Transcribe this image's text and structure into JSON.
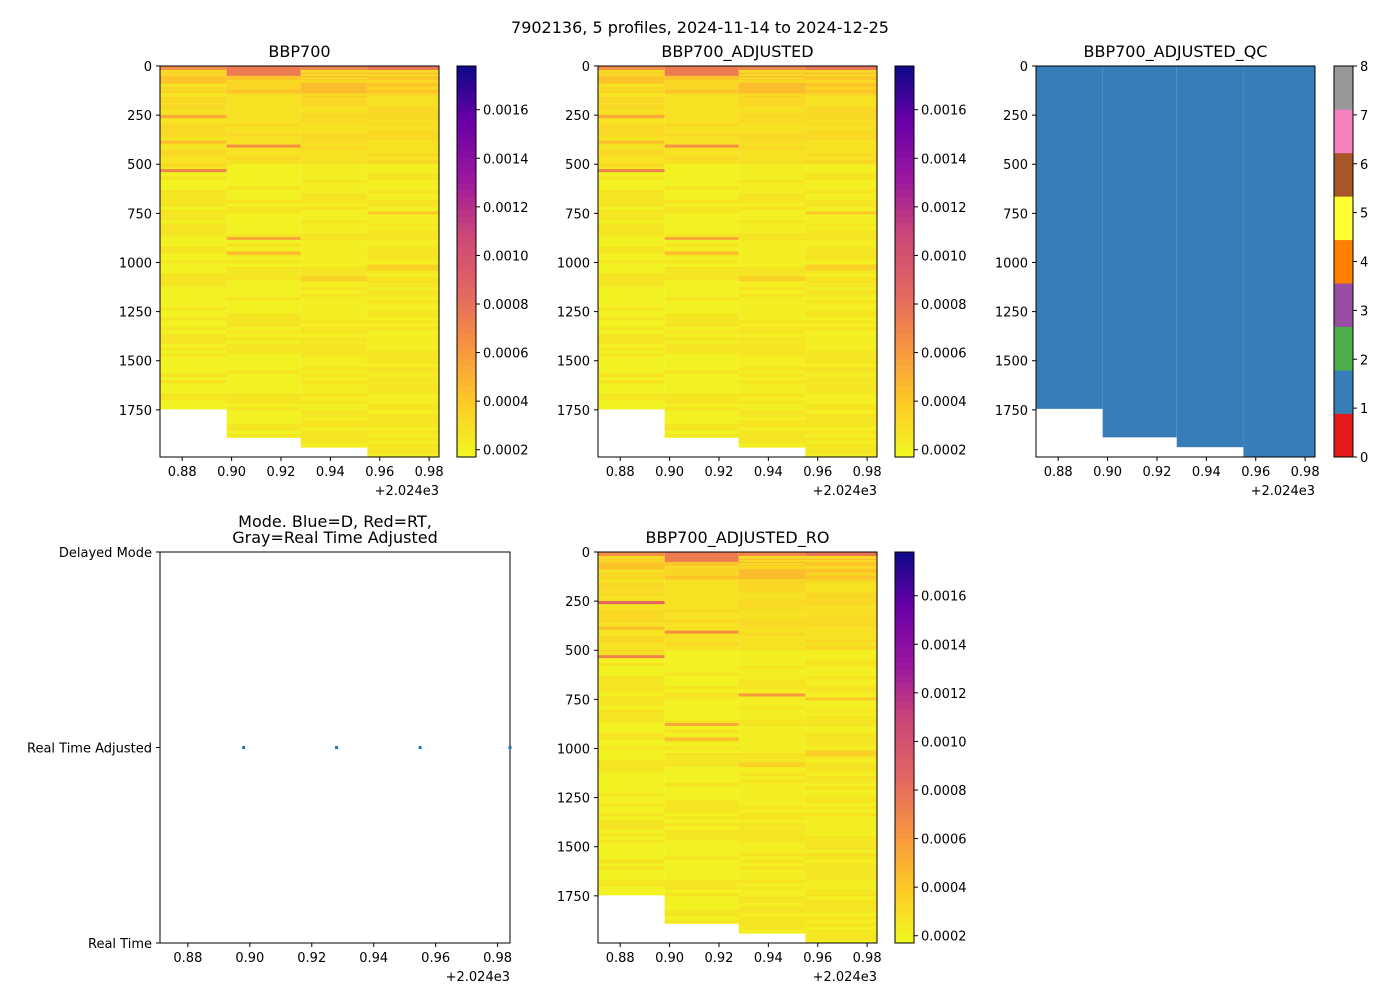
{
  "figure": {
    "suptitle": "7902136, 5 profiles, 2024-11-14 to 2024-12-25",
    "x_offset_label": "+2.024e3"
  },
  "chart_data": [
    {
      "type": "heatmap",
      "title": "BBP700",
      "xlim": [
        0.871,
        0.984
      ],
      "ylim": [
        1990,
        0
      ],
      "xticks": [
        "0.88",
        "0.90",
        "0.92",
        "0.94",
        "0.96",
        "0.98"
      ],
      "xtick_values": [
        0.88,
        0.9,
        0.92,
        0.94,
        0.96,
        0.98
      ],
      "yticks": [
        "0",
        "250",
        "500",
        "750",
        "1000",
        "1250",
        "1500",
        "1750"
      ],
      "ytick_values": [
        0,
        250,
        500,
        750,
        1000,
        1250,
        1500,
        1750
      ],
      "x_offset": "+2.024e3",
      "colorbar": {
        "range": [
          0.00017,
          0.00178
        ],
        "ticks": [
          "0.0002",
          "0.0004",
          "0.0006",
          "0.0008",
          "0.0010",
          "0.0012",
          "0.0014",
          "0.0016"
        ],
        "tick_values": [
          0.0002,
          0.0004,
          0.0006,
          0.0008,
          0.001,
          0.0012,
          0.0014,
          0.0016
        ],
        "colormap": "plasma_r"
      },
      "profiles": [
        {
          "x0": 0.871,
          "x1": 0.898,
          "max_depth": 1745,
          "layers": [
            {
              "top": 0,
              "bottom": 30,
              "value": 0.00066
            },
            {
              "top": 30,
              "bottom": 90,
              "value": 0.00042
            },
            {
              "top": 90,
              "bottom": 500,
              "value": 0.00027
            },
            {
              "top": 500,
              "bottom": 1745,
              "value": 0.00021
            }
          ],
          "lines": [
            {
              "depth": 250,
              "value": 0.00055
            },
            {
              "depth": 380,
              "value": 0.00045
            },
            {
              "depth": 525,
              "value": 0.0007
            },
            {
              "depth": 1600,
              "value": 0.00028
            }
          ]
        },
        {
          "x0": 0.898,
          "x1": 0.928,
          "max_depth": 1890,
          "layers": [
            {
              "top": 0,
              "bottom": 50,
              "value": 0.00075
            },
            {
              "top": 50,
              "bottom": 140,
              "value": 0.00042
            },
            {
              "top": 140,
              "bottom": 500,
              "value": 0.00028
            },
            {
              "top": 500,
              "bottom": 1890,
              "value": 0.00021
            }
          ],
          "lines": [
            {
              "depth": 400,
              "value": 0.00065
            },
            {
              "depth": 870,
              "value": 0.00055
            },
            {
              "depth": 945,
              "value": 0.00045
            }
          ]
        },
        {
          "x0": 0.928,
          "x1": 0.955,
          "max_depth": 1940,
          "layers": [
            {
              "top": 0,
              "bottom": 60,
              "value": 0.0007
            },
            {
              "top": 60,
              "bottom": 160,
              "value": 0.00045
            },
            {
              "top": 160,
              "bottom": 500,
              "value": 0.00028
            },
            {
              "top": 500,
              "bottom": 1940,
              "value": 0.00022
            }
          ],
          "lines": [
            {
              "depth": 1070,
              "value": 0.00036
            },
            {
              "depth": 1080,
              "value": 0.00036
            }
          ]
        },
        {
          "x0": 0.955,
          "x1": 0.984,
          "max_depth": 1990,
          "layers": [
            {
              "top": 0,
              "bottom": 40,
              "value": 0.00078
            },
            {
              "top": 40,
              "bottom": 150,
              "value": 0.00042
            },
            {
              "top": 150,
              "bottom": 500,
              "value": 0.00028
            },
            {
              "top": 500,
              "bottom": 1990,
              "value": 0.00022
            }
          ],
          "lines": [
            {
              "depth": 1010,
              "value": 0.00036
            },
            {
              "depth": 1025,
              "value": 0.00036
            },
            {
              "depth": 740,
              "value": 0.0004
            }
          ]
        }
      ]
    },
    {
      "type": "heatmap",
      "title": "BBP700_ADJUSTED",
      "xlim": [
        0.871,
        0.984
      ],
      "ylim": [
        1990,
        0
      ],
      "xticks": [
        "0.88",
        "0.90",
        "0.92",
        "0.94",
        "0.96",
        "0.98"
      ],
      "xtick_values": [
        0.88,
        0.9,
        0.92,
        0.94,
        0.96,
        0.98
      ],
      "yticks": [
        "0",
        "250",
        "500",
        "750",
        "1000",
        "1250",
        "1500",
        "1750"
      ],
      "ytick_values": [
        0,
        250,
        500,
        750,
        1000,
        1250,
        1500,
        1750
      ],
      "x_offset": "+2.024e3",
      "colorbar": {
        "range": [
          0.00017,
          0.00178
        ],
        "ticks": [
          "0.0002",
          "0.0004",
          "0.0006",
          "0.0008",
          "0.0010",
          "0.0012",
          "0.0014",
          "0.0016"
        ],
        "tick_values": [
          0.0002,
          0.0004,
          0.0006,
          0.0008,
          0.001,
          0.0012,
          0.0014,
          0.0016
        ],
        "colormap": "plasma_r"
      },
      "profiles": [
        {
          "x0": 0.871,
          "x1": 0.898,
          "max_depth": 1745,
          "layers": [
            {
              "top": 0,
              "bottom": 30,
              "value": 0.00066
            },
            {
              "top": 30,
              "bottom": 90,
              "value": 0.00042
            },
            {
              "top": 90,
              "bottom": 500,
              "value": 0.00027
            },
            {
              "top": 500,
              "bottom": 1745,
              "value": 0.00021
            }
          ],
          "lines": [
            {
              "depth": 250,
              "value": 0.00055
            },
            {
              "depth": 380,
              "value": 0.00045
            },
            {
              "depth": 525,
              "value": 0.0007
            },
            {
              "depth": 1600,
              "value": 0.00028
            }
          ]
        },
        {
          "x0": 0.898,
          "x1": 0.928,
          "max_depth": 1890,
          "layers": [
            {
              "top": 0,
              "bottom": 50,
              "value": 0.00075
            },
            {
              "top": 50,
              "bottom": 140,
              "value": 0.00042
            },
            {
              "top": 140,
              "bottom": 500,
              "value": 0.00028
            },
            {
              "top": 500,
              "bottom": 1890,
              "value": 0.00021
            }
          ],
          "lines": [
            {
              "depth": 400,
              "value": 0.00065
            },
            {
              "depth": 870,
              "value": 0.00055
            },
            {
              "depth": 945,
              "value": 0.00045
            }
          ]
        },
        {
          "x0": 0.928,
          "x1": 0.955,
          "max_depth": 1940,
          "layers": [
            {
              "top": 0,
              "bottom": 60,
              "value": 0.0007
            },
            {
              "top": 60,
              "bottom": 160,
              "value": 0.00045
            },
            {
              "top": 160,
              "bottom": 500,
              "value": 0.00028
            },
            {
              "top": 500,
              "bottom": 1940,
              "value": 0.00022
            }
          ],
          "lines": [
            {
              "depth": 1070,
              "value": 0.00036
            },
            {
              "depth": 1080,
              "value": 0.00036
            }
          ]
        },
        {
          "x0": 0.955,
          "x1": 0.984,
          "max_depth": 1990,
          "layers": [
            {
              "top": 0,
              "bottom": 40,
              "value": 0.00078
            },
            {
              "top": 40,
              "bottom": 150,
              "value": 0.00042
            },
            {
              "top": 150,
              "bottom": 500,
              "value": 0.00028
            },
            {
              "top": 500,
              "bottom": 1990,
              "value": 0.00022
            }
          ],
          "lines": [
            {
              "depth": 1010,
              "value": 0.00036
            },
            {
              "depth": 1025,
              "value": 0.00036
            },
            {
              "depth": 740,
              "value": 0.0004
            }
          ]
        }
      ]
    },
    {
      "type": "heatmap",
      "title": "BBP700_ADJUSTED_QC",
      "xlim": [
        0.871,
        0.984
      ],
      "ylim": [
        1990,
        0
      ],
      "xticks": [
        "0.88",
        "0.90",
        "0.92",
        "0.94",
        "0.96",
        "0.98"
      ],
      "xtick_values": [
        0.88,
        0.9,
        0.92,
        0.94,
        0.96,
        0.98
      ],
      "yticks": [
        "0",
        "250",
        "500",
        "750",
        "1000",
        "1250",
        "1500",
        "1750"
      ],
      "ytick_values": [
        0,
        250,
        500,
        750,
        1000,
        1250,
        1500,
        1750
      ],
      "x_offset": "+2.024e3",
      "qc_value": 1,
      "colorbar": {
        "range": [
          0,
          8
        ],
        "ticks": [
          "0",
          "1",
          "2",
          "3",
          "4",
          "5",
          "6",
          "7",
          "8"
        ],
        "tick_values": [
          0,
          1,
          2,
          3,
          4,
          5,
          6,
          7,
          8
        ],
        "colors": [
          "#e41a1c",
          "#377eb8",
          "#4daf4a",
          "#984ea3",
          "#ff7f00",
          "#ffff33",
          "#a65628",
          "#f781bf",
          "#999999"
        ]
      },
      "profiles": [
        {
          "x0": 0.871,
          "x1": 0.898,
          "max_depth": 1745
        },
        {
          "x0": 0.898,
          "x1": 0.928,
          "max_depth": 1890
        },
        {
          "x0": 0.928,
          "x1": 0.955,
          "max_depth": 1940
        },
        {
          "x0": 0.955,
          "x1": 0.984,
          "max_depth": 1990
        }
      ]
    },
    {
      "type": "scatter",
      "title_line1": "Mode. Blue=D, Red=RT,",
      "title_line2": "Gray=Real Time Adjusted",
      "xlim": [
        0.871,
        0.984
      ],
      "ylim": [
        0,
        2
      ],
      "xticks": [
        "0.88",
        "0.90",
        "0.92",
        "0.94",
        "0.96",
        "0.98"
      ],
      "xtick_values": [
        0.88,
        0.9,
        0.92,
        0.94,
        0.96,
        0.98
      ],
      "yticks": [
        "Real Time",
        "Real Time Adjusted",
        "Delayed Mode"
      ],
      "ytick_values": [
        0,
        1,
        2
      ],
      "x_offset": "+2.024e3",
      "points": [
        {
          "x": 0.898,
          "y": 1
        },
        {
          "x": 0.928,
          "y": 1
        },
        {
          "x": 0.955,
          "y": 1
        },
        {
          "x": 0.984,
          "y": 1
        }
      ]
    },
    {
      "type": "heatmap",
      "title": "BBP700_ADJUSTED_RO",
      "xlim": [
        0.871,
        0.984
      ],
      "ylim": [
        1990,
        0
      ],
      "xticks": [
        "0.88",
        "0.90",
        "0.92",
        "0.94",
        "0.96",
        "0.98"
      ],
      "xtick_values": [
        0.88,
        0.9,
        0.92,
        0.94,
        0.96,
        0.98
      ],
      "yticks": [
        "0",
        "250",
        "500",
        "750",
        "1000",
        "1250",
        "1500",
        "1750"
      ],
      "ytick_values": [
        0,
        250,
        500,
        750,
        1000,
        1250,
        1500,
        1750
      ],
      "x_offset": "+2.024e3",
      "colorbar": {
        "range": [
          0.00017,
          0.00178
        ],
        "ticks": [
          "0.0002",
          "0.0004",
          "0.0006",
          "0.0008",
          "0.0010",
          "0.0012",
          "0.0014",
          "0.0016"
        ],
        "tick_values": [
          0.0002,
          0.0004,
          0.0006,
          0.0008,
          0.001,
          0.0012,
          0.0014,
          0.0016
        ],
        "colormap": "plasma_r"
      },
      "profiles": [
        {
          "x0": 0.871,
          "x1": 0.898,
          "max_depth": 1745,
          "layers": [
            {
              "top": 0,
              "bottom": 30,
              "value": 0.00066
            },
            {
              "top": 30,
              "bottom": 90,
              "value": 0.00042
            },
            {
              "top": 90,
              "bottom": 500,
              "value": 0.00027
            },
            {
              "top": 500,
              "bottom": 1745,
              "value": 0.00021
            }
          ],
          "lines": [
            {
              "depth": 250,
              "value": 0.00085
            },
            {
              "depth": 380,
              "value": 0.00045
            },
            {
              "depth": 525,
              "value": 0.0007
            },
            {
              "depth": 1600,
              "value": 0.00028
            }
          ]
        },
        {
          "x0": 0.898,
          "x1": 0.928,
          "max_depth": 1890,
          "layers": [
            {
              "top": 0,
              "bottom": 50,
              "value": 0.00075
            },
            {
              "top": 50,
              "bottom": 140,
              "value": 0.00042
            },
            {
              "top": 140,
              "bottom": 500,
              "value": 0.00028
            },
            {
              "top": 500,
              "bottom": 1890,
              "value": 0.00021
            }
          ],
          "lines": [
            {
              "depth": 400,
              "value": 0.00065
            },
            {
              "depth": 870,
              "value": 0.00055
            },
            {
              "depth": 945,
              "value": 0.00045
            }
          ]
        },
        {
          "x0": 0.928,
          "x1": 0.955,
          "max_depth": 1940,
          "layers": [
            {
              "top": 0,
              "bottom": 60,
              "value": 0.0007
            },
            {
              "top": 60,
              "bottom": 160,
              "value": 0.00045
            },
            {
              "top": 160,
              "bottom": 500,
              "value": 0.00028
            },
            {
              "top": 500,
              "bottom": 1940,
              "value": 0.00022
            }
          ],
          "lines": [
            {
              "depth": 1070,
              "value": 0.00036
            },
            {
              "depth": 1080,
              "value": 0.00036
            },
            {
              "depth": 720,
              "value": 0.0006
            }
          ]
        },
        {
          "x0": 0.955,
          "x1": 0.984,
          "max_depth": 1990,
          "layers": [
            {
              "top": 0,
              "bottom": 40,
              "value": 0.00078
            },
            {
              "top": 40,
              "bottom": 150,
              "value": 0.00042
            },
            {
              "top": 150,
              "bottom": 500,
              "value": 0.00028
            },
            {
              "top": 500,
              "bottom": 1990,
              "value": 0.00022
            }
          ],
          "lines": [
            {
              "depth": 1010,
              "value": 0.00036
            },
            {
              "depth": 1025,
              "value": 0.00036
            },
            {
              "depth": 740,
              "value": 0.0004
            }
          ]
        }
      ]
    }
  ]
}
